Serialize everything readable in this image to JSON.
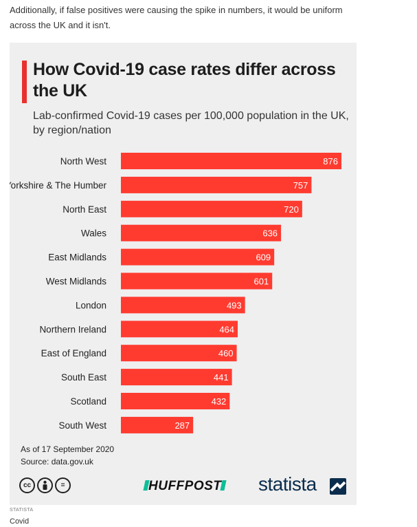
{
  "intro_text": "Additionally, if false positives were causing the spike in numbers, it would be uniform across the UK and it isn't.",
  "chart_data": {
    "type": "bar",
    "orientation": "horizontal",
    "title": "How Covid-19 case rates differ across the UK",
    "subtitle": "Lab-confirmed Covid-19 cases per 100,000 population in the UK, by region/nation",
    "categories": [
      "North West",
      "Yorkshire & The Humber",
      "North East",
      "Wales",
      "East Midlands",
      "West Midlands",
      "London",
      "Northern Ireland",
      "East of England",
      "South East",
      "Scotland",
      "South West"
    ],
    "values": [
      876,
      757,
      720,
      636,
      609,
      601,
      493,
      464,
      460,
      441,
      432,
      287
    ],
    "bar_color": "#ff3b30",
    "accent_color": "#e8312e",
    "xlim": [
      0,
      876
    ],
    "grid": false,
    "legend": "none"
  },
  "footer": {
    "date_note": "As of 17 September 2020",
    "source": "Source: data.gov.uk",
    "cc_icons": [
      "cc-icon",
      "attribution-icon",
      "no-derivatives-icon"
    ],
    "cc_symbols": [
      "cc",
      "",
      "="
    ],
    "huffpost": "HUFFPOST",
    "statista": "statista"
  },
  "credit": "STATISTA",
  "caption": "Covid"
}
